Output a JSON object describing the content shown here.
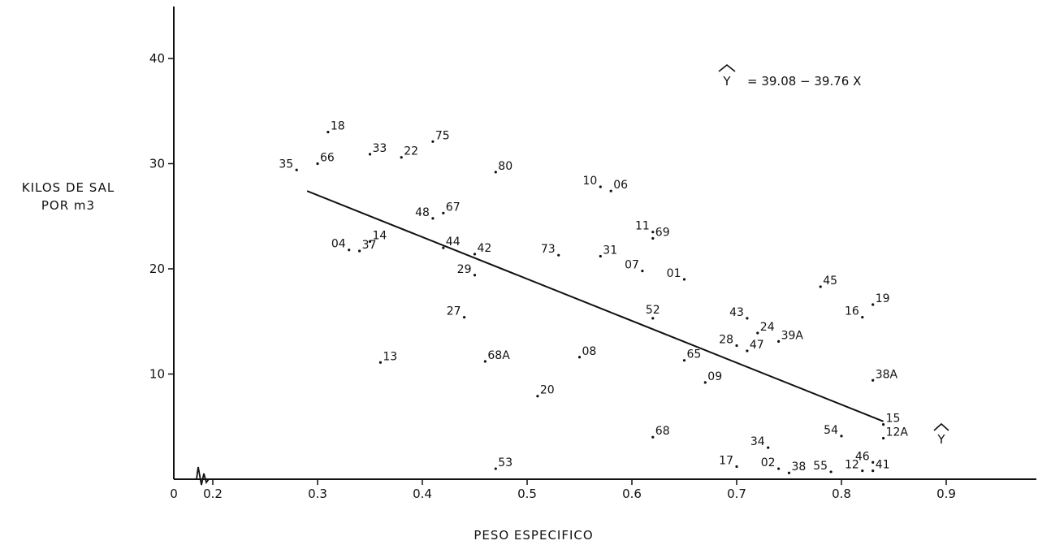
{
  "chart_data": {
    "type": "scatter",
    "title": "",
    "xlabel": "PESO ESPECIFICO",
    "ylabel_line1": "KILOS DE SAL",
    "ylabel_line2": "POR m3",
    "equation_hat": "Y",
    "equation_text": "= 39.08 − 39.76 X",
    "yhat_axis_label": "Y",
    "xlim": [
      0.2,
      0.9
    ],
    "ylim": [
      0,
      40
    ],
    "x_axis_break": true,
    "x_ticks": [
      {
        "value": 0,
        "label": "0"
      },
      {
        "value": 0.2,
        "label": "0.2"
      },
      {
        "value": 0.3,
        "label": "0.3"
      },
      {
        "value": 0.4,
        "label": "0.4"
      },
      {
        "value": 0.5,
        "label": "0.5"
      },
      {
        "value": 0.6,
        "label": "0.6"
      },
      {
        "value": 0.7,
        "label": "0.7"
      },
      {
        "value": 0.8,
        "label": "0.8"
      },
      {
        "value": 0.9,
        "label": "0.9"
      }
    ],
    "y_ticks": [
      {
        "value": 10,
        "label": "10"
      },
      {
        "value": 20,
        "label": "20"
      },
      {
        "value": 30,
        "label": "30"
      },
      {
        "value": 40,
        "label": "40"
      }
    ],
    "regression_line": {
      "x": [
        0.29,
        0.84
      ],
      "y": [
        27.4,
        5.5
      ]
    },
    "points": [
      {
        "id": "18",
        "x": 0.31,
        "y": 33.0,
        "pos": "r"
      },
      {
        "id": "75",
        "x": 0.41,
        "y": 32.1,
        "pos": "r"
      },
      {
        "id": "33",
        "x": 0.35,
        "y": 30.9,
        "pos": "r"
      },
      {
        "id": "22",
        "x": 0.38,
        "y": 30.6,
        "pos": "r"
      },
      {
        "id": "35",
        "x": 0.28,
        "y": 29.4,
        "pos": "l"
      },
      {
        "id": "66",
        "x": 0.3,
        "y": 30.0,
        "pos": "r"
      },
      {
        "id": "80",
        "x": 0.47,
        "y": 29.2,
        "pos": "r"
      },
      {
        "id": "10",
        "x": 0.57,
        "y": 27.8,
        "pos": "l"
      },
      {
        "id": "06",
        "x": 0.58,
        "y": 27.4,
        "pos": "r"
      },
      {
        "id": "48",
        "x": 0.41,
        "y": 24.8,
        "pos": "l"
      },
      {
        "id": "67",
        "x": 0.42,
        "y": 25.3,
        "pos": "r"
      },
      {
        "id": "11",
        "x": 0.62,
        "y": 23.5,
        "pos": "l"
      },
      {
        "id": "69",
        "x": 0.62,
        "y": 22.9,
        "pos": "r"
      },
      {
        "id": "14",
        "x": 0.35,
        "y": 22.6,
        "pos": "r"
      },
      {
        "id": "04",
        "x": 0.33,
        "y": 21.8,
        "pos": "l"
      },
      {
        "id": "37",
        "x": 0.34,
        "y": 21.7,
        "pos": "r"
      },
      {
        "id": "44",
        "x": 0.42,
        "y": 22.0,
        "pos": "r"
      },
      {
        "id": "42",
        "x": 0.45,
        "y": 21.4,
        "pos": "r"
      },
      {
        "id": "73",
        "x": 0.53,
        "y": 21.3,
        "pos": "l"
      },
      {
        "id": "31",
        "x": 0.57,
        "y": 21.2,
        "pos": "r"
      },
      {
        "id": "07",
        "x": 0.61,
        "y": 19.8,
        "pos": "l"
      },
      {
        "id": "01",
        "x": 0.65,
        "y": 19.0,
        "pos": "l"
      },
      {
        "id": "29",
        "x": 0.45,
        "y": 19.4,
        "pos": "l"
      },
      {
        "id": "45",
        "x": 0.78,
        "y": 18.3,
        "pos": "r"
      },
      {
        "id": "19",
        "x": 0.83,
        "y": 16.6,
        "pos": "r"
      },
      {
        "id": "16",
        "x": 0.82,
        "y": 15.4,
        "pos": "l"
      },
      {
        "id": "27",
        "x": 0.44,
        "y": 15.4,
        "pos": "l"
      },
      {
        "id": "52",
        "x": 0.62,
        "y": 15.3,
        "pos": "u"
      },
      {
        "id": "43",
        "x": 0.71,
        "y": 15.3,
        "pos": "l"
      },
      {
        "id": "24",
        "x": 0.72,
        "y": 13.9,
        "pos": "r"
      },
      {
        "id": "39A",
        "x": 0.74,
        "y": 13.1,
        "pos": "r"
      },
      {
        "id": "28",
        "x": 0.7,
        "y": 12.7,
        "pos": "l"
      },
      {
        "id": "47",
        "x": 0.71,
        "y": 12.2,
        "pos": "r"
      },
      {
        "id": "13",
        "x": 0.36,
        "y": 11.1,
        "pos": "r"
      },
      {
        "id": "68A",
        "x": 0.46,
        "y": 11.2,
        "pos": "r"
      },
      {
        "id": "08",
        "x": 0.55,
        "y": 11.6,
        "pos": "r"
      },
      {
        "id": "65",
        "x": 0.65,
        "y": 11.3,
        "pos": "r"
      },
      {
        "id": "09",
        "x": 0.67,
        "y": 9.2,
        "pos": "r"
      },
      {
        "id": "38A",
        "x": 0.83,
        "y": 9.4,
        "pos": "r"
      },
      {
        "id": "20",
        "x": 0.51,
        "y": 7.9,
        "pos": "r"
      },
      {
        "id": "15",
        "x": 0.84,
        "y": 5.2,
        "pos": "r"
      },
      {
        "id": "54",
        "x": 0.8,
        "y": 4.1,
        "pos": "l"
      },
      {
        "id": "68",
        "x": 0.62,
        "y": 4.0,
        "pos": "r"
      },
      {
        "id": "12A",
        "x": 0.84,
        "y": 3.9,
        "pos": "r"
      },
      {
        "id": "34",
        "x": 0.73,
        "y": 3.0,
        "pos": "l"
      },
      {
        "id": "46",
        "x": 0.83,
        "y": 1.6,
        "pos": "l"
      },
      {
        "id": "17",
        "x": 0.7,
        "y": 1.2,
        "pos": "l"
      },
      {
        "id": "02",
        "x": 0.74,
        "y": 1.0,
        "pos": "l"
      },
      {
        "id": "53",
        "x": 0.47,
        "y": 1.0,
        "pos": "r"
      },
      {
        "id": "12",
        "x": 0.82,
        "y": 0.8,
        "pos": "l"
      },
      {
        "id": "41",
        "x": 0.83,
        "y": 0.8,
        "pos": "r"
      },
      {
        "id": "55",
        "x": 0.79,
        "y": 0.7,
        "pos": "l"
      },
      {
        "id": "38",
        "x": 0.75,
        "y": 0.6,
        "pos": "r"
      }
    ]
  }
}
